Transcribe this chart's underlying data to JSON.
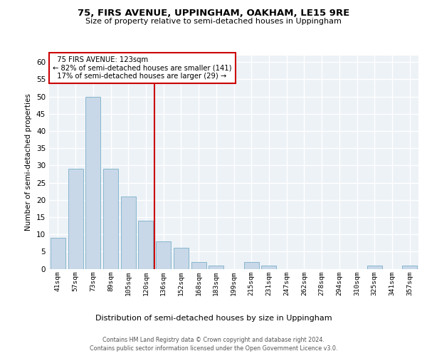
{
  "title1": "75, FIRS AVENUE, UPPINGHAM, OAKHAM, LE15 9RE",
  "title2": "Size of property relative to semi-detached houses in Uppingham",
  "xlabel": "Distribution of semi-detached houses by size in Uppingham",
  "ylabel": "Number of semi-detached properties",
  "categories": [
    "41sqm",
    "57sqm",
    "73sqm",
    "89sqm",
    "105sqm",
    "120sqm",
    "136sqm",
    "152sqm",
    "168sqm",
    "183sqm",
    "199sqm",
    "215sqm",
    "231sqm",
    "247sqm",
    "262sqm",
    "278sqm",
    "294sqm",
    "310sqm",
    "325sqm",
    "341sqm",
    "357sqm"
  ],
  "values": [
    9,
    29,
    50,
    29,
    21,
    14,
    8,
    6,
    2,
    1,
    0,
    2,
    1,
    0,
    0,
    0,
    0,
    0,
    1,
    0,
    1
  ],
  "bar_color": "#c8d8e8",
  "bar_edge_color": "#7aafc8",
  "property_line_index": 5.5,
  "property_label": "75 FIRS AVENUE: 123sqm",
  "pct_smaller": "82% of semi-detached houses are smaller (141)",
  "pct_larger": "17% of semi-detached houses are larger (29)",
  "annotation_box_color": "#cc0000",
  "ylim": [
    0,
    62
  ],
  "yticks": [
    0,
    5,
    10,
    15,
    20,
    25,
    30,
    35,
    40,
    45,
    50,
    55,
    60
  ],
  "footer1": "Contains HM Land Registry data © Crown copyright and database right 2024.",
  "footer2": "Contains public sector information licensed under the Open Government Licence v3.0.",
  "bg_color": "#edf2f7",
  "grid_color": "#ffffff"
}
